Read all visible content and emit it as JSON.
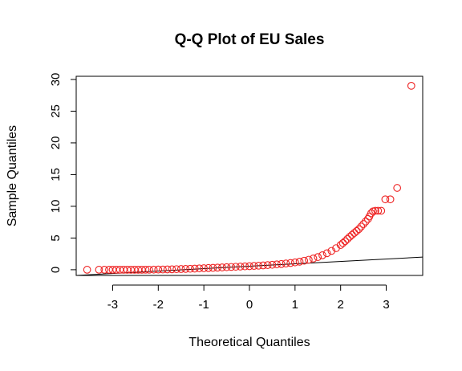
{
  "chart_data": {
    "type": "scatter",
    "title": "Q-Q Plot of EU Sales",
    "xlabel": "Theoretical Quantiles",
    "ylabel": "Sample Quantiles",
    "xlim": [
      -3.8,
      3.8
    ],
    "ylim": [
      -0.9,
      30.5
    ],
    "x_ticks": [
      -3,
      -2,
      -1,
      0,
      1,
      2,
      3
    ],
    "y_ticks": [
      0,
      5,
      10,
      15,
      20,
      25,
      30
    ],
    "grid": false,
    "point_color": "#ee2222",
    "line_color": "#000000",
    "reference_line": {
      "intercept": 0.55,
      "slope": 0.38
    },
    "series": [
      {
        "x": [
          -3.56,
          -3.3,
          -3.18,
          -3.08,
          -3.0,
          -2.92,
          -2.84,
          -2.76,
          -2.68,
          -2.6,
          -2.52,
          -2.44,
          -2.36,
          -2.28,
          -2.2,
          -2.1,
          -2.0,
          -1.9,
          -1.8,
          -1.7,
          -1.6,
          -1.5,
          -1.4,
          -1.3,
          -1.2,
          -1.1,
          -1.0,
          -0.9,
          -0.8,
          -0.7,
          -0.6,
          -0.5,
          -0.4,
          -0.3,
          -0.2,
          -0.1,
          0.0,
          0.1,
          0.2,
          0.3,
          0.4,
          0.5,
          0.6,
          0.7,
          0.8,
          0.9,
          1.0,
          1.1,
          1.2,
          1.3,
          1.4,
          1.5,
          1.6,
          1.7,
          1.8,
          1.9,
          2.0,
          2.05,
          2.1,
          2.15,
          2.2,
          2.25,
          2.3,
          2.35,
          2.4,
          2.45,
          2.5,
          2.55,
          2.6,
          2.63,
          2.67,
          2.71,
          2.76,
          2.82,
          2.89,
          2.98,
          3.09,
          3.24,
          3.55
        ],
        "y": [
          0.0,
          0.0,
          0.0,
          0.0,
          0.0,
          0.0,
          0.0,
          0.0,
          0.0,
          0.0,
          0.0,
          0.0,
          0.0,
          0.01,
          0.01,
          0.02,
          0.03,
          0.04,
          0.05,
          0.07,
          0.09,
          0.11,
          0.13,
          0.15,
          0.18,
          0.21,
          0.24,
          0.27,
          0.3,
          0.33,
          0.37,
          0.4,
          0.44,
          0.47,
          0.5,
          0.53,
          0.56,
          0.6,
          0.64,
          0.68,
          0.73,
          0.78,
          0.84,
          0.9,
          0.98,
          1.06,
          1.16,
          1.27,
          1.42,
          1.58,
          1.77,
          2.0,
          2.28,
          2.6,
          2.97,
          3.4,
          3.9,
          4.2,
          4.5,
          4.85,
          5.2,
          5.5,
          5.8,
          6.1,
          6.4,
          6.8,
          7.2,
          7.6,
          8.0,
          8.4,
          8.9,
          9.2,
          9.3,
          9.3,
          9.3,
          11.1,
          11.1,
          12.9,
          29.0
        ]
      }
    ]
  }
}
